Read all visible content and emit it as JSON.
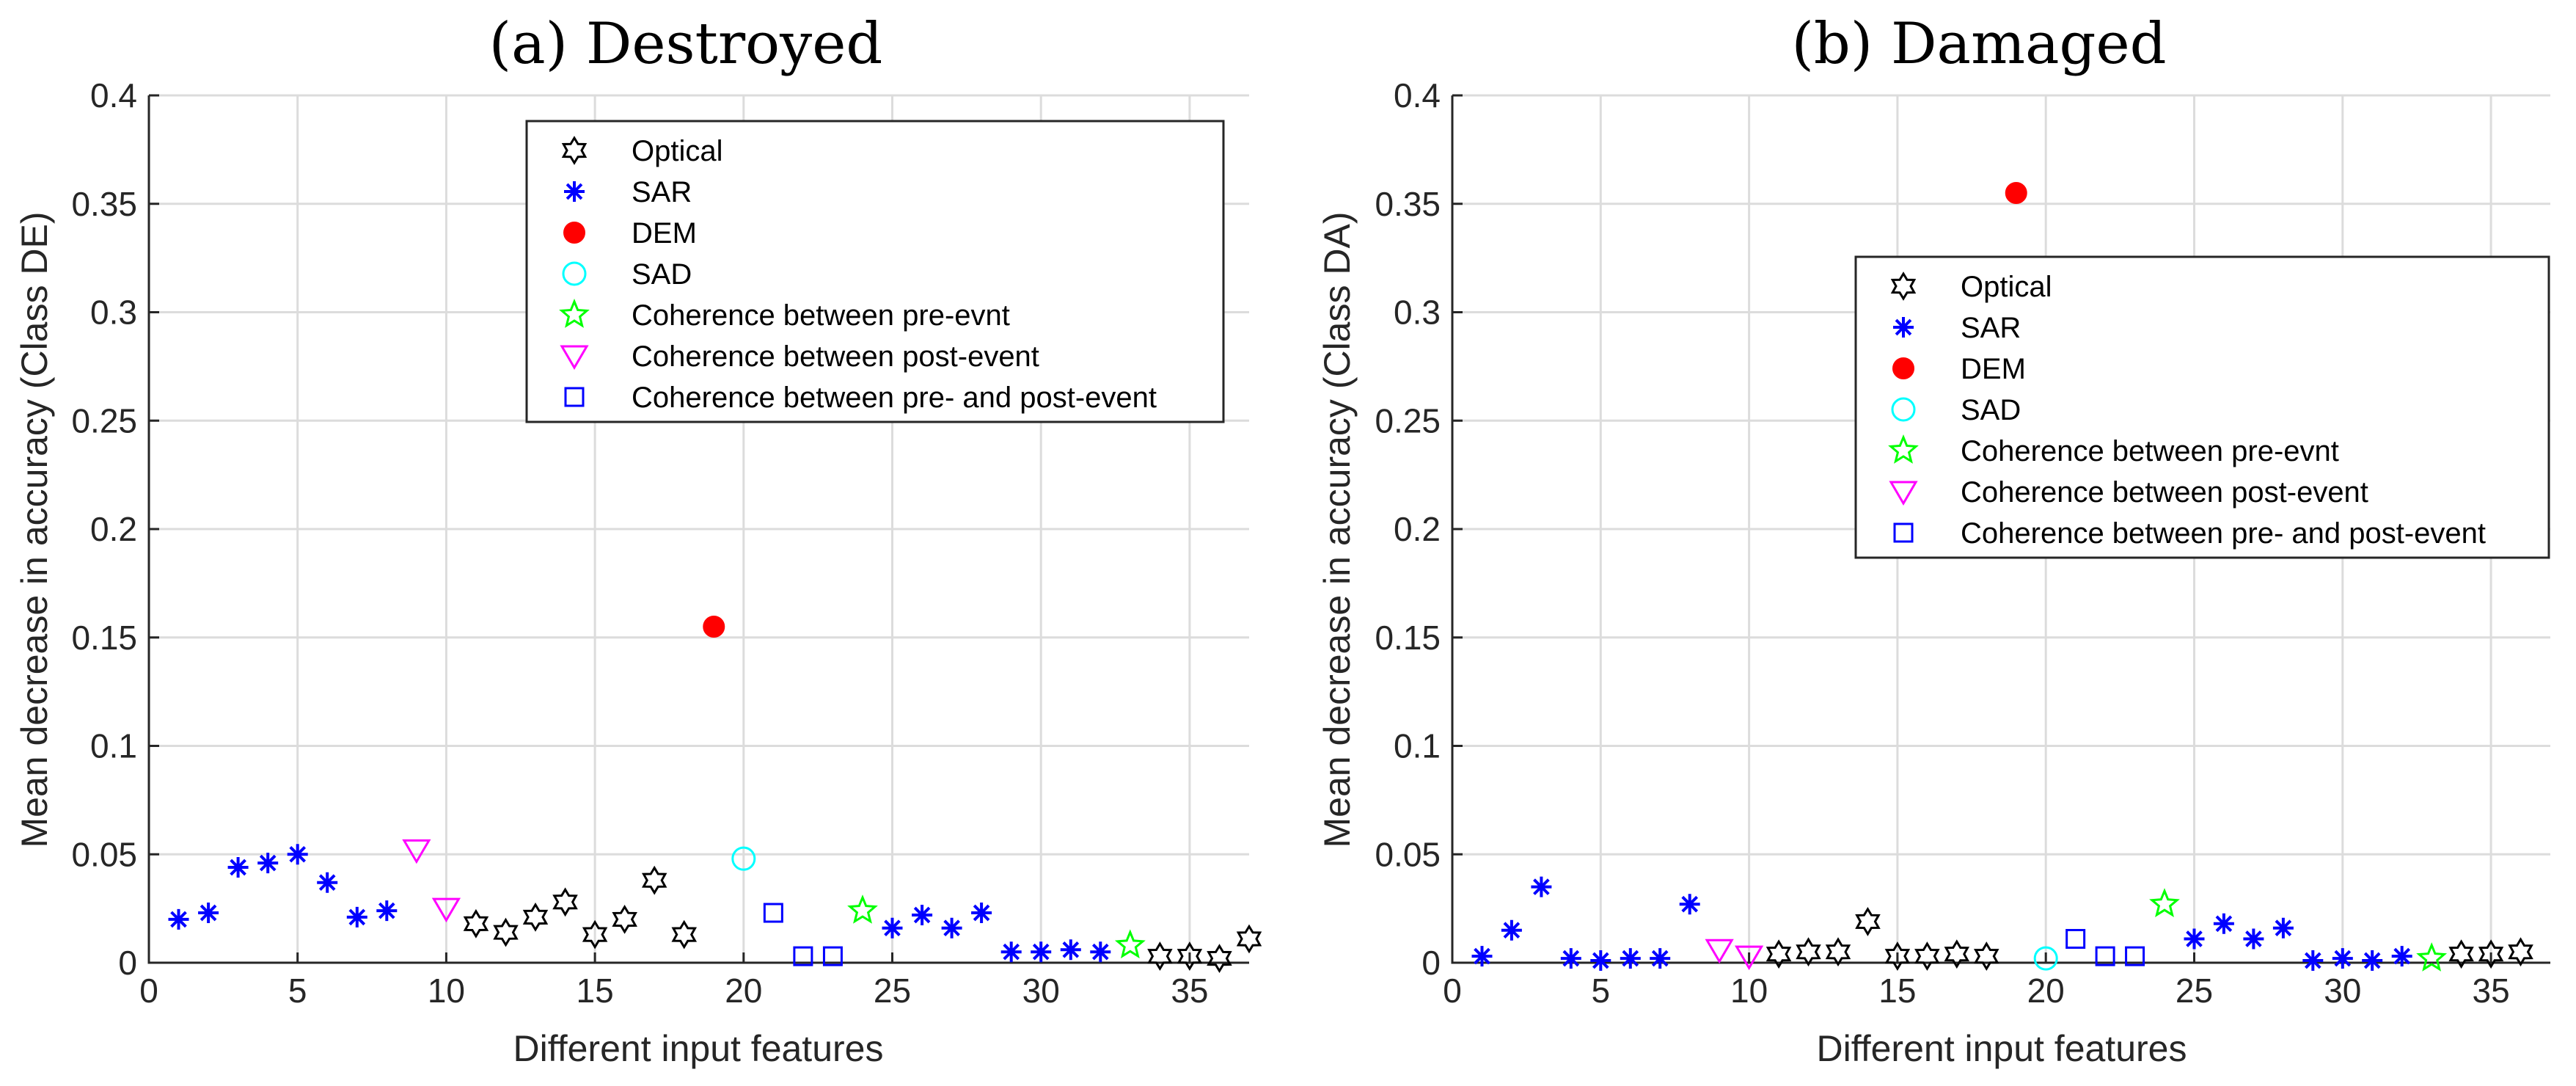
{
  "chart_data": [
    {
      "type": "scatter",
      "title": "(a) Destroyed",
      "xlabel": "Different input features",
      "ylabel": "Mean decrease in accuracy (Class DE)",
      "xlim": [
        0,
        37
      ],
      "ylim": [
        0,
        0.4
      ],
      "xticks": [
        0,
        5,
        10,
        15,
        20,
        25,
        30,
        35
      ],
      "xtick_labels": [
        "0",
        "5",
        "10",
        "15",
        "20",
        "25",
        "30",
        "35"
      ],
      "yticks": [
        0,
        0.05,
        0.1,
        0.15,
        0.2,
        0.25,
        0.3,
        0.35,
        0.4
      ],
      "ytick_labels": [
        "0",
        "0.05",
        "0.1",
        "0.15",
        "0.2",
        "0.25",
        "0.3",
        "0.35",
        "0.4"
      ],
      "grid": true,
      "legend_position": "top-right",
      "series": [
        {
          "name": "Optical",
          "marker": "hexagram",
          "color": "#000000",
          "x": [
            11,
            12,
            13,
            14,
            15,
            16,
            17,
            18,
            34,
            35,
            36,
            37
          ],
          "y": [
            0.018,
            0.014,
            0.021,
            0.028,
            0.013,
            0.02,
            0.038,
            0.013,
            0.003,
            0.003,
            0.002,
            0.011
          ]
        },
        {
          "name": "SAR",
          "marker": "asterisk",
          "color": "#0000ff",
          "x": [
            1,
            2,
            3,
            4,
            5,
            6,
            7,
            8,
            25,
            26,
            27,
            28,
            29,
            30,
            31,
            32
          ],
          "y": [
            0.02,
            0.023,
            0.044,
            0.046,
            0.05,
            0.037,
            0.021,
            0.024,
            0.016,
            0.022,
            0.016,
            0.023,
            0.005,
            0.005,
            0.006,
            0.005
          ]
        },
        {
          "name": "DEM",
          "marker": "filled-circle",
          "color": "#ff0000",
          "x": [
            19
          ],
          "y": [
            0.155
          ]
        },
        {
          "name": "SAD",
          "marker": "circle",
          "color": "#00ffff",
          "x": [
            20
          ],
          "y": [
            0.048
          ]
        },
        {
          "name": "Coherence between pre-evnt",
          "marker": "pentagram",
          "color": "#00ff00",
          "x": [
            24,
            33
          ],
          "y": [
            0.024,
            0.008
          ]
        },
        {
          "name": "Coherence between post-event",
          "marker": "triangle-down",
          "color": "#ff00ff",
          "x": [
            9,
            10
          ],
          "y": [
            0.052,
            0.025
          ]
        },
        {
          "name": "Coherence between pre- and post-event",
          "marker": "square",
          "color": "#0000ff",
          "x": [
            21,
            22,
            23
          ],
          "y": [
            0.023,
            0.003,
            0.003
          ]
        }
      ]
    },
    {
      "type": "scatter",
      "title": "(b) Damaged",
      "xlabel": "Different input features",
      "ylabel": "Mean decrease in accuracy (Class DA)",
      "xlim": [
        0,
        37
      ],
      "ylim": [
        0,
        0.4
      ],
      "xticks": [
        0,
        5,
        10,
        15,
        20,
        25,
        30,
        35
      ],
      "xtick_labels": [
        "0",
        "5",
        "10",
        "15",
        "20",
        "25",
        "30",
        "35"
      ],
      "yticks": [
        0,
        0.05,
        0.1,
        0.15,
        0.2,
        0.25,
        0.3,
        0.35,
        0.4
      ],
      "ytick_labels": [
        "0",
        "0.05",
        "0.1",
        "0.15",
        "0.2",
        "0.25",
        "0.3",
        "0.35",
        "0.4"
      ],
      "grid": true,
      "legend_position": "top-right",
      "series": [
        {
          "name": "Optical",
          "marker": "hexagram",
          "color": "#000000",
          "x": [
            11,
            12,
            13,
            14,
            15,
            16,
            17,
            18,
            34,
            35,
            36
          ],
          "y": [
            0.004,
            0.005,
            0.005,
            0.019,
            0.003,
            0.003,
            0.004,
            0.003,
            0.004,
            0.004,
            0.005
          ]
        },
        {
          "name": "SAR",
          "marker": "asterisk",
          "color": "#0000ff",
          "x": [
            1,
            2,
            3,
            4,
            5,
            6,
            7,
            8,
            25,
            26,
            27,
            28,
            29,
            30,
            31,
            32
          ],
          "y": [
            0.003,
            0.015,
            0.035,
            0.002,
            0.001,
            0.002,
            0.002,
            0.027,
            0.011,
            0.018,
            0.011,
            0.016,
            0.001,
            0.002,
            0.001,
            0.003
          ]
        },
        {
          "name": "DEM",
          "marker": "filled-circle",
          "color": "#ff0000",
          "x": [
            19
          ],
          "y": [
            0.355
          ]
        },
        {
          "name": "SAD",
          "marker": "circle",
          "color": "#00ffff",
          "x": [
            20
          ],
          "y": [
            0.002
          ]
        },
        {
          "name": "Coherence between pre-evnt",
          "marker": "pentagram",
          "color": "#00ff00",
          "x": [
            24,
            33
          ],
          "y": [
            0.027,
            0.002
          ]
        },
        {
          "name": "Coherence between post-event",
          "marker": "triangle-down",
          "color": "#ff00ff",
          "x": [
            9,
            10
          ],
          "y": [
            0.006,
            0.003
          ]
        },
        {
          "name": "Coherence between pre- and post-event",
          "marker": "square",
          "color": "#0000ff",
          "x": [
            21,
            22,
            23
          ],
          "y": [
            0.011,
            0.003,
            0.003
          ]
        }
      ]
    }
  ]
}
